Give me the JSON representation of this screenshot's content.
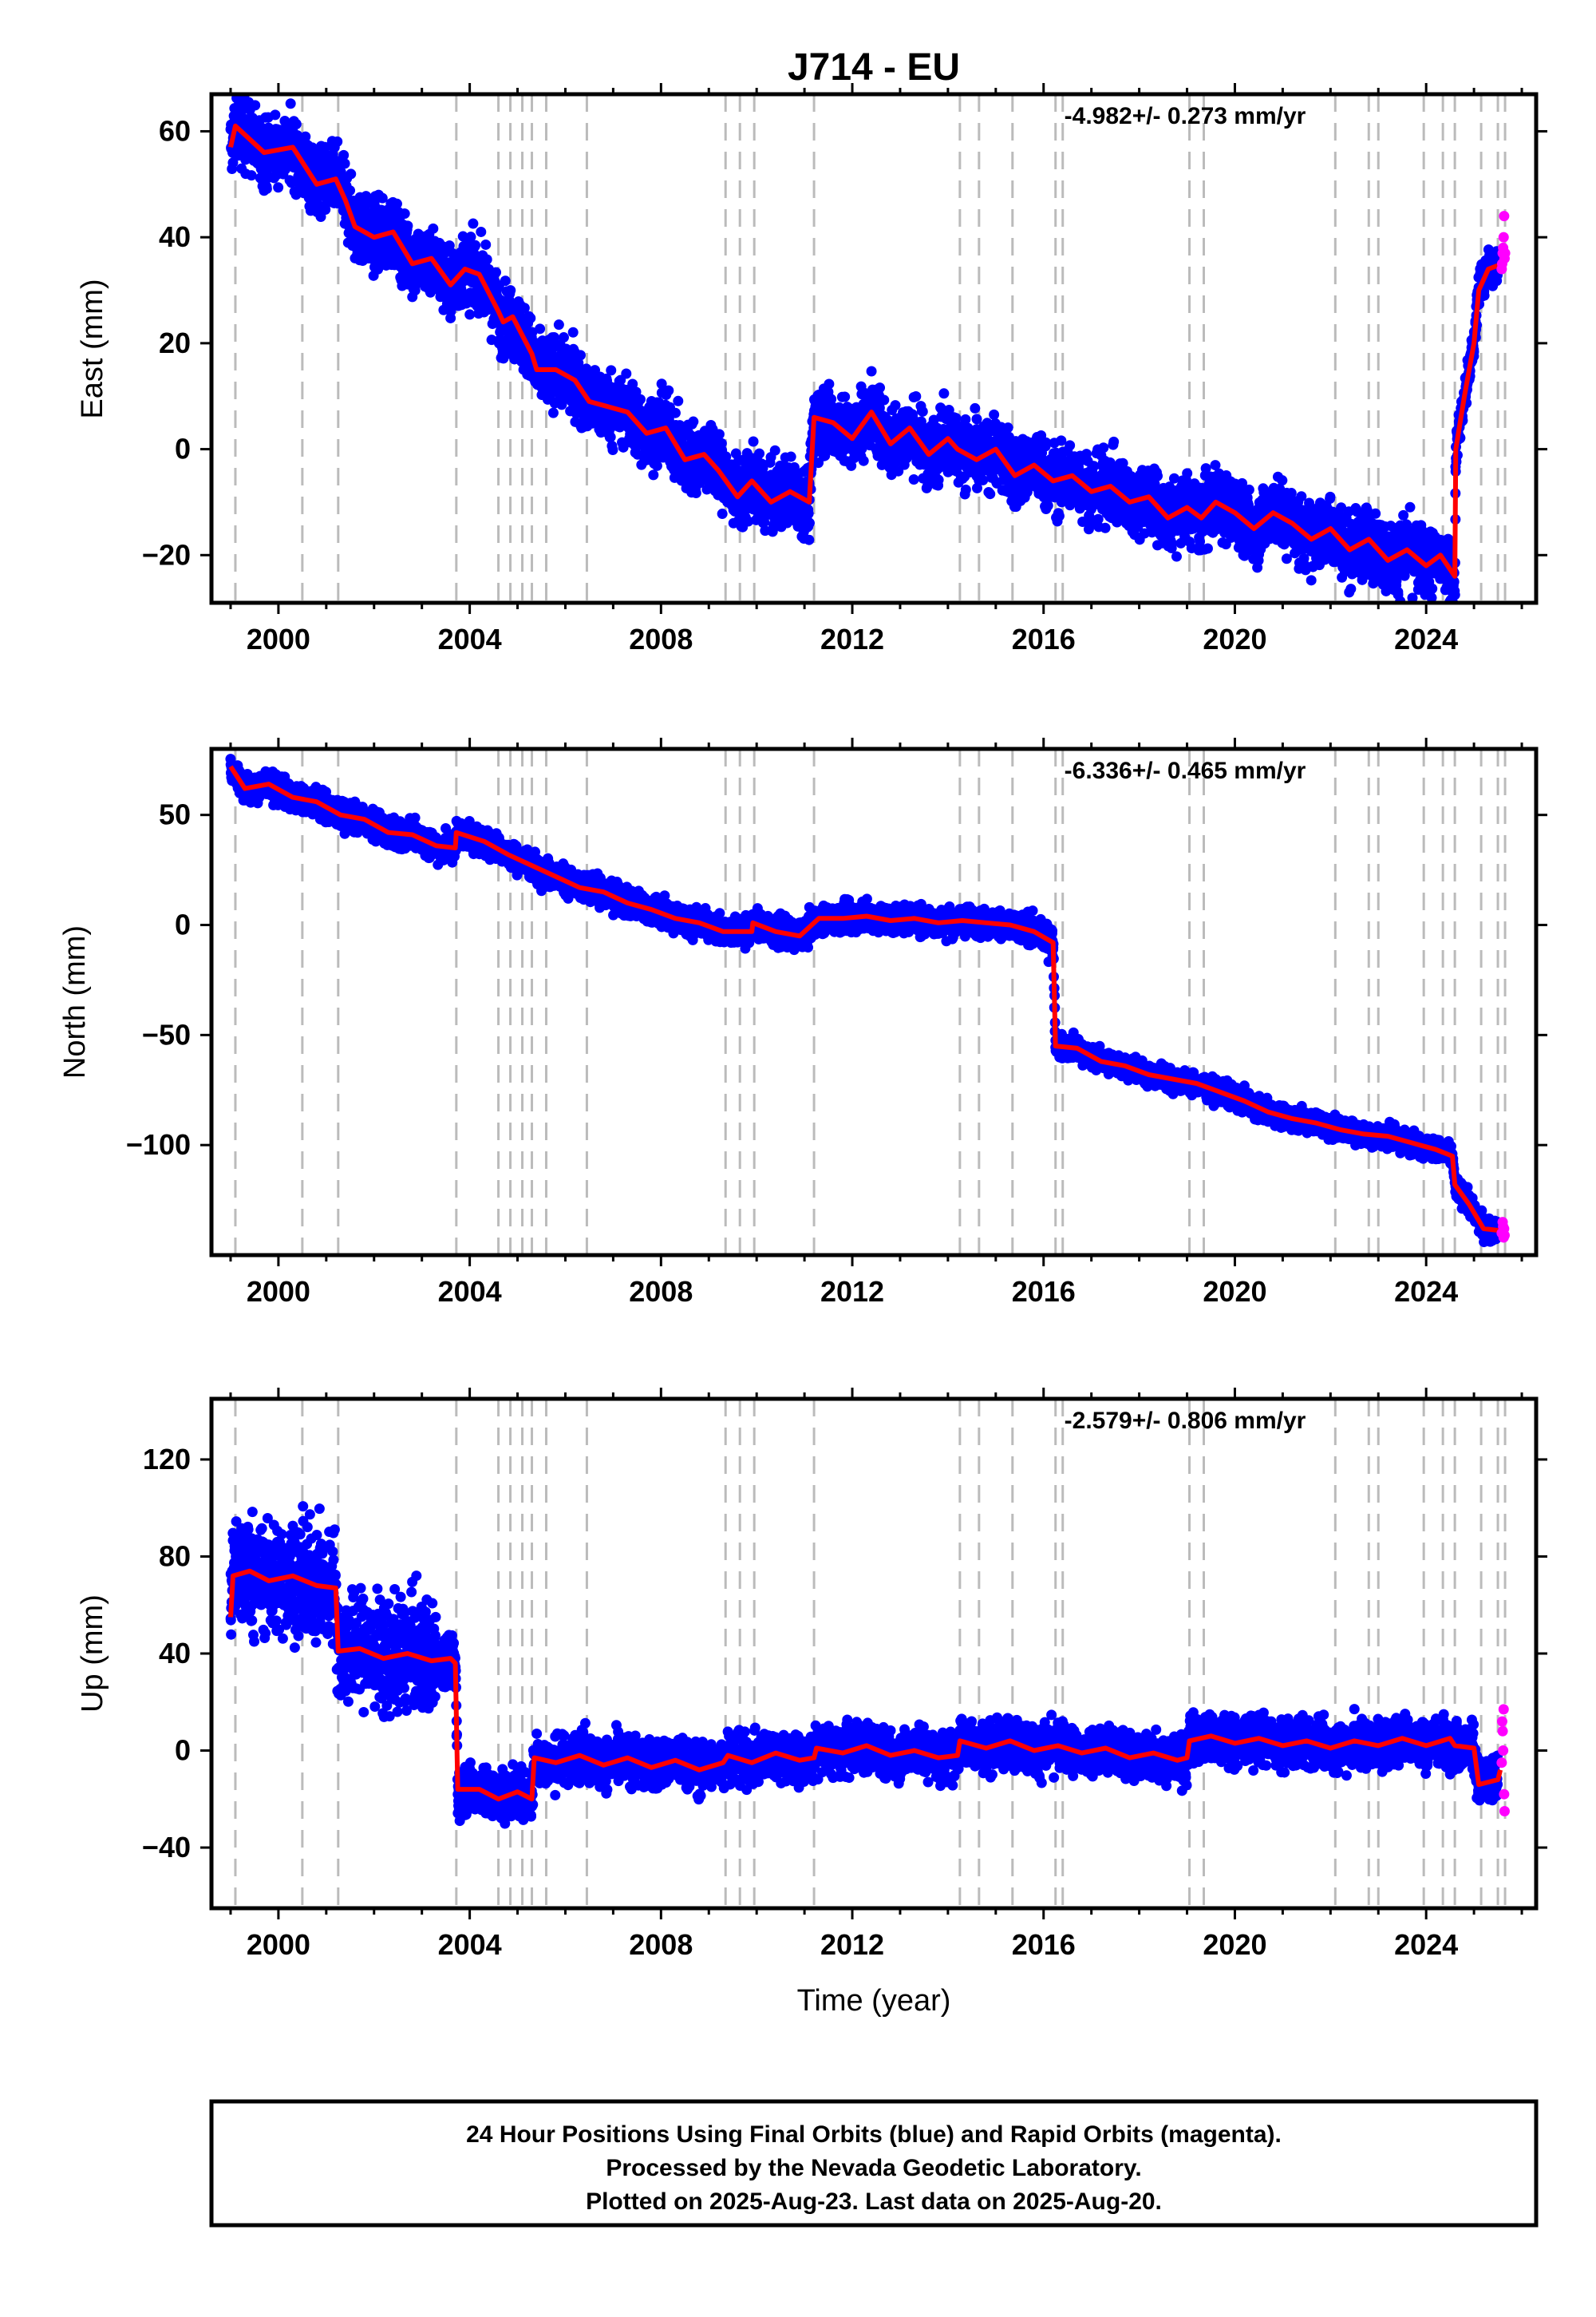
{
  "title": "J714 - EU",
  "xlabel": "Time (year)",
  "footer": {
    "line1": "24 Hour Positions Using Final Orbits (blue) and Rapid Orbits (magenta).",
    "line2": "Processed by the Nevada Geodetic Laboratory.",
    "line3": "Plotted on 2025-Aug-23. Last data on 2025-Aug-20."
  },
  "colors": {
    "final": "#0000ff",
    "rapid": "#ff00ff",
    "model": "#ff0000",
    "steps": "#bbbbbb"
  },
  "chart_data": [
    {
      "type": "scatter",
      "name": "east",
      "ylabel": "East (mm)",
      "rate": "-4.982+/- 0.273 mm/yr",
      "xlim": [
        1998.6,
        2026.3
      ],
      "ylim": [
        -29,
        67
      ],
      "xticks": [
        2000,
        2004,
        2008,
        2012,
        2016,
        2020,
        2024
      ],
      "yticks": [
        -20,
        0,
        20,
        40,
        60
      ],
      "ytick_labels": [
        "−20",
        "0",
        "20",
        "40",
        "60"
      ],
      "grid": false,
      "model_points": [
        [
          1999.0,
          57
        ],
        [
          1999.1,
          61
        ],
        [
          1999.7,
          56
        ],
        [
          2000.3,
          57
        ],
        [
          2000.8,
          50
        ],
        [
          2001.2,
          51
        ],
        [
          2001.4,
          47
        ],
        [
          2001.6,
          42
        ],
        [
          2002.0,
          40
        ],
        [
          2002.4,
          41
        ],
        [
          2002.8,
          35
        ],
        [
          2003.2,
          36
        ],
        [
          2003.6,
          31
        ],
        [
          2003.9,
          34
        ],
        [
          2004.2,
          33
        ],
        [
          2004.6,
          26
        ],
        [
          2004.7,
          24
        ],
        [
          2004.9,
          25
        ],
        [
          2005.3,
          18
        ],
        [
          2005.4,
          15
        ],
        [
          2005.8,
          15
        ],
        [
          2006.2,
          13
        ],
        [
          2006.5,
          9
        ],
        [
          2006.9,
          8
        ],
        [
          2007.3,
          7
        ],
        [
          2007.7,
          3
        ],
        [
          2008.1,
          4
        ],
        [
          2008.5,
          -2
        ],
        [
          2008.9,
          -1
        ],
        [
          2009.2,
          -4
        ],
        [
          2009.6,
          -9
        ],
        [
          2009.9,
          -6
        ],
        [
          2010.3,
          -10
        ],
        [
          2010.7,
          -8
        ],
        [
          2011.1,
          -10
        ],
        [
          2011.2,
          6
        ],
        [
          2011.6,
          5
        ],
        [
          2012.0,
          2
        ],
        [
          2012.4,
          7
        ],
        [
          2012.8,
          1
        ],
        [
          2013.2,
          4
        ],
        [
          2013.6,
          -1
        ],
        [
          2014.0,
          2
        ],
        [
          2014.2,
          0
        ],
        [
          2014.6,
          -2
        ],
        [
          2015.0,
          0
        ],
        [
          2015.4,
          -5
        ],
        [
          2015.8,
          -3
        ],
        [
          2016.2,
          -6
        ],
        [
          2016.6,
          -5
        ],
        [
          2017.0,
          -8
        ],
        [
          2017.4,
          -7
        ],
        [
          2017.8,
          -10
        ],
        [
          2018.2,
          -9
        ],
        [
          2018.6,
          -13
        ],
        [
          2019.0,
          -11
        ],
        [
          2019.3,
          -13
        ],
        [
          2019.6,
          -10
        ],
        [
          2020.0,
          -12
        ],
        [
          2020.4,
          -15
        ],
        [
          2020.8,
          -12
        ],
        [
          2021.2,
          -14
        ],
        [
          2021.6,
          -17
        ],
        [
          2022.0,
          -15
        ],
        [
          2022.4,
          -19
        ],
        [
          2022.8,
          -17
        ],
        [
          2023.2,
          -21
        ],
        [
          2023.6,
          -19
        ],
        [
          2024.0,
          -22
        ],
        [
          2024.3,
          -20
        ],
        [
          2024.6,
          -24
        ],
        [
          2024.62,
          0
        ],
        [
          2024.8,
          10
        ],
        [
          2025.0,
          20
        ],
        [
          2025.1,
          30
        ],
        [
          2025.3,
          34
        ],
        [
          2025.6,
          35
        ]
      ],
      "final_bands": [
        [
          1999.0,
          2024.62,
          4.5
        ],
        [
          2024.62,
          2025.5,
          2.5
        ]
      ],
      "rapid_points": [
        [
          2025.58,
          34
        ],
        [
          2025.6,
          37
        ],
        [
          2025.62,
          40
        ],
        [
          2025.63,
          44
        ],
        [
          2025.64,
          36
        ],
        [
          2025.61,
          38
        ],
        [
          2025.59,
          35
        ],
        [
          2025.65,
          37
        ]
      ]
    },
    {
      "type": "scatter",
      "name": "north",
      "ylabel": "North (mm)",
      "rate": "-6.336+/- 0.465 mm/yr",
      "xlim": [
        1998.6,
        2026.3
      ],
      "ylim": [
        -150,
        80
      ],
      "xticks": [
        2000,
        2004,
        2008,
        2012,
        2016,
        2020,
        2024
      ],
      "yticks": [
        -100,
        -50,
        0,
        50
      ],
      "ytick_labels": [
        "−100",
        "−50",
        "0",
        "50"
      ],
      "grid": false,
      "model_points": [
        [
          1999.0,
          72
        ],
        [
          1999.3,
          62
        ],
        [
          1999.8,
          64
        ],
        [
          2000.3,
          58
        ],
        [
          2000.8,
          56
        ],
        [
          2001.3,
          50
        ],
        [
          2001.8,
          48
        ],
        [
          2002.3,
          42
        ],
        [
          2002.8,
          41
        ],
        [
          2003.3,
          36
        ],
        [
          2003.7,
          35
        ],
        [
          2003.72,
          42
        ],
        [
          2004.3,
          38
        ],
        [
          2004.8,
          32
        ],
        [
          2005.3,
          27
        ],
        [
          2005.8,
          22
        ],
        [
          2006.3,
          17
        ],
        [
          2006.8,
          15
        ],
        [
          2007.3,
          10
        ],
        [
          2007.8,
          7
        ],
        [
          2008.3,
          3
        ],
        [
          2008.8,
          1
        ],
        [
          2009.3,
          -3
        ],
        [
          2009.9,
          -3
        ],
        [
          2009.92,
          1
        ],
        [
          2010.4,
          -3
        ],
        [
          2010.9,
          -5
        ],
        [
          2011.3,
          3
        ],
        [
          2011.8,
          3
        ],
        [
          2012.3,
          4
        ],
        [
          2012.8,
          2
        ],
        [
          2013.3,
          3
        ],
        [
          2013.8,
          1
        ],
        [
          2014.3,
          2
        ],
        [
          2014.8,
          1
        ],
        [
          2015.3,
          0
        ],
        [
          2015.8,
          -3
        ],
        [
          2016.2,
          -8
        ],
        [
          2016.25,
          -55
        ],
        [
          2016.7,
          -56
        ],
        [
          2017.2,
          -62
        ],
        [
          2017.7,
          -64
        ],
        [
          2018.2,
          -68
        ],
        [
          2018.7,
          -70
        ],
        [
          2019.2,
          -72
        ],
        [
          2019.7,
          -76
        ],
        [
          2020.2,
          -80
        ],
        [
          2020.7,
          -85
        ],
        [
          2021.2,
          -88
        ],
        [
          2021.7,
          -90
        ],
        [
          2022.2,
          -93
        ],
        [
          2022.7,
          -95
        ],
        [
          2023.2,
          -96
        ],
        [
          2023.7,
          -99
        ],
        [
          2024.2,
          -102
        ],
        [
          2024.55,
          -105
        ],
        [
          2024.6,
          -118
        ],
        [
          2024.9,
          -127
        ],
        [
          2025.2,
          -138
        ],
        [
          2025.6,
          -139
        ]
      ],
      "final_bands": [
        [
          1999.0,
          2016.25,
          4.5
        ],
        [
          2016.25,
          2025.5,
          3.5
        ]
      ],
      "rapid_points": [
        [
          2025.58,
          -140
        ],
        [
          2025.6,
          -135
        ],
        [
          2025.62,
          -142
        ],
        [
          2025.63,
          -138
        ],
        [
          2025.64,
          -141
        ],
        [
          2025.61,
          -137
        ]
      ]
    },
    {
      "type": "scatter",
      "name": "up",
      "ylabel": "Up (mm)",
      "rate": "-2.579+/- 0.806 mm/yr",
      "xlim": [
        1998.6,
        2026.3
      ],
      "ylim": [
        -65,
        145
      ],
      "xticks": [
        2000,
        2004,
        2008,
        2012,
        2016,
        2020,
        2024
      ],
      "yticks": [
        -40,
        0,
        40,
        80,
        120
      ],
      "ytick_labels": [
        "−40",
        "0",
        "40",
        "80",
        "120"
      ],
      "grid": false,
      "model_points": [
        [
          1999.0,
          55
        ],
        [
          1999.05,
          72
        ],
        [
          1999.4,
          74
        ],
        [
          1999.8,
          70
        ],
        [
          2000.3,
          72
        ],
        [
          2000.8,
          68
        ],
        [
          2001.2,
          67
        ],
        [
          2001.25,
          41
        ],
        [
          2001.7,
          42
        ],
        [
          2002.2,
          38
        ],
        [
          2002.7,
          40
        ],
        [
          2003.2,
          37
        ],
        [
          2003.6,
          38
        ],
        [
          2003.7,
          36
        ],
        [
          2003.75,
          -16
        ],
        [
          2004.2,
          -16
        ],
        [
          2004.6,
          -20
        ],
        [
          2005.0,
          -17
        ],
        [
          2005.3,
          -20
        ],
        [
          2005.35,
          -3
        ],
        [
          2005.8,
          -5
        ],
        [
          2006.3,
          -2
        ],
        [
          2006.8,
          -6
        ],
        [
          2007.3,
          -3
        ],
        [
          2007.8,
          -7
        ],
        [
          2008.3,
          -4
        ],
        [
          2008.8,
          -8
        ],
        [
          2009.3,
          -5
        ],
        [
          2009.4,
          -2
        ],
        [
          2009.9,
          -5
        ],
        [
          2010.4,
          -1
        ],
        [
          2010.9,
          -4
        ],
        [
          2011.2,
          -3
        ],
        [
          2011.25,
          1
        ],
        [
          2011.8,
          -1
        ],
        [
          2012.3,
          2
        ],
        [
          2012.8,
          -2
        ],
        [
          2013.3,
          0
        ],
        [
          2013.8,
          -3
        ],
        [
          2014.2,
          -2
        ],
        [
          2014.25,
          4
        ],
        [
          2014.8,
          1
        ],
        [
          2015.3,
          4
        ],
        [
          2015.8,
          0
        ],
        [
          2016.3,
          2
        ],
        [
          2016.8,
          -1
        ],
        [
          2017.3,
          1
        ],
        [
          2017.8,
          -3
        ],
        [
          2018.3,
          -1
        ],
        [
          2018.8,
          -4
        ],
        [
          2019.0,
          -3
        ],
        [
          2019.05,
          4
        ],
        [
          2019.5,
          6
        ],
        [
          2020.0,
          3
        ],
        [
          2020.5,
          5
        ],
        [
          2021.0,
          2
        ],
        [
          2021.5,
          4
        ],
        [
          2022.0,
          1
        ],
        [
          2022.5,
          4
        ],
        [
          2023.0,
          2
        ],
        [
          2023.5,
          5
        ],
        [
          2024.0,
          2
        ],
        [
          2024.5,
          5
        ],
        [
          2024.6,
          2
        ],
        [
          2025.0,
          1
        ],
        [
          2025.1,
          -14
        ],
        [
          2025.5,
          -12
        ],
        [
          2025.55,
          -8
        ]
      ],
      "final_bands": [
        [
          1999.0,
          2003.3,
          16
        ],
        [
          2003.3,
          2025.5,
          7
        ]
      ],
      "rapid_points": [
        [
          2025.58,
          -5
        ],
        [
          2025.6,
          8
        ],
        [
          2025.62,
          17
        ],
        [
          2025.63,
          -18
        ],
        [
          2025.64,
          -25
        ],
        [
          2025.61,
          0
        ],
        [
          2025.59,
          12
        ]
      ]
    }
  ],
  "step_lines": [
    1999.1,
    2000.5,
    2001.25,
    2003.72,
    2004.6,
    2004.85,
    2005.1,
    2005.3,
    2005.6,
    2006.45,
    2009.35,
    2009.65,
    2009.95,
    2011.2,
    2014.25,
    2014.65,
    2015.35,
    2016.25,
    2016.4,
    2019.05,
    2019.35,
    2022.1,
    2022.8,
    2023.0,
    2023.95,
    2024.35,
    2024.6,
    2025.15,
    2025.5,
    2025.65
  ]
}
